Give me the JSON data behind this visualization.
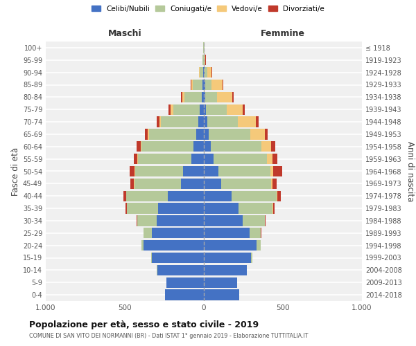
{
  "age_groups": [
    "0-4",
    "5-9",
    "10-14",
    "15-19",
    "20-24",
    "25-29",
    "30-34",
    "35-39",
    "40-44",
    "45-49",
    "50-54",
    "55-59",
    "60-64",
    "65-69",
    "70-74",
    "75-79",
    "80-84",
    "85-89",
    "90-94",
    "95-99",
    "100+"
  ],
  "birth_years": [
    "2014-2018",
    "2009-2013",
    "2004-2008",
    "1999-2003",
    "1994-1998",
    "1989-1993",
    "1984-1988",
    "1979-1983",
    "1974-1978",
    "1969-1973",
    "1964-1968",
    "1959-1963",
    "1954-1958",
    "1949-1953",
    "1944-1948",
    "1939-1943",
    "1934-1938",
    "1929-1933",
    "1924-1928",
    "1919-1923",
    "≤ 1918"
  ],
  "males": {
    "celibi": [
      245,
      235,
      295,
      330,
      380,
      330,
      300,
      290,
      230,
      145,
      130,
      80,
      65,
      50,
      35,
      25,
      15,
      10,
      5,
      2,
      2
    ],
    "coniugati": [
      0,
      1,
      2,
      5,
      15,
      50,
      120,
      195,
      260,
      295,
      305,
      335,
      330,
      295,
      235,
      170,
      110,
      60,
      20,
      5,
      2
    ],
    "vedovi": [
      0,
      0,
      0,
      0,
      0,
      1,
      1,
      1,
      2,
      3,
      5,
      5,
      5,
      10,
      10,
      15,
      10,
      10,
      5,
      0,
      0
    ],
    "divorziati": [
      0,
      0,
      0,
      0,
      1,
      2,
      5,
      10,
      15,
      20,
      30,
      25,
      25,
      20,
      20,
      15,
      10,
      5,
      2,
      0,
      0
    ]
  },
  "females": {
    "nubili": [
      225,
      210,
      270,
      300,
      335,
      290,
      245,
      220,
      175,
      110,
      90,
      60,
      45,
      30,
      20,
      15,
      10,
      10,
      5,
      2,
      2
    ],
    "coniugate": [
      0,
      1,
      2,
      8,
      25,
      70,
      140,
      215,
      285,
      315,
      330,
      340,
      320,
      265,
      195,
      130,
      75,
      40,
      15,
      3,
      1
    ],
    "vedove": [
      0,
      0,
      0,
      0,
      0,
      1,
      2,
      3,
      5,
      10,
      20,
      35,
      60,
      90,
      115,
      100,
      95,
      70,
      30,
      5,
      1
    ],
    "divorziate": [
      0,
      0,
      0,
      0,
      1,
      2,
      5,
      10,
      20,
      25,
      55,
      30,
      25,
      20,
      15,
      15,
      8,
      3,
      2,
      1,
      0
    ]
  },
  "colors": {
    "celibi": "#4472c4",
    "coniugati": "#b5c99a",
    "vedovi": "#f5c97a",
    "divorziati": "#c0392b"
  },
  "xlim": 1000,
  "title": "Popolazione per età, sesso e stato civile - 2019",
  "subtitle": "COMUNE DI SAN VITO DEI NORMANNI (BR) - Dati ISTAT 1° gennaio 2019 - Elaborazione TUTTITALIA.IT",
  "xlabel_left": "Maschi",
  "xlabel_right": "Femmine",
  "ylabel_left": "Fasce di età",
  "ylabel_right": "Anni di nascita",
  "legend_labels": [
    "Celibi/Nubili",
    "Coniugati/e",
    "Vedovi/e",
    "Divorziati/e"
  ],
  "background_color": "#ffffff",
  "plot_bg": "#f0f0f0",
  "grid_color": "#ffffff"
}
